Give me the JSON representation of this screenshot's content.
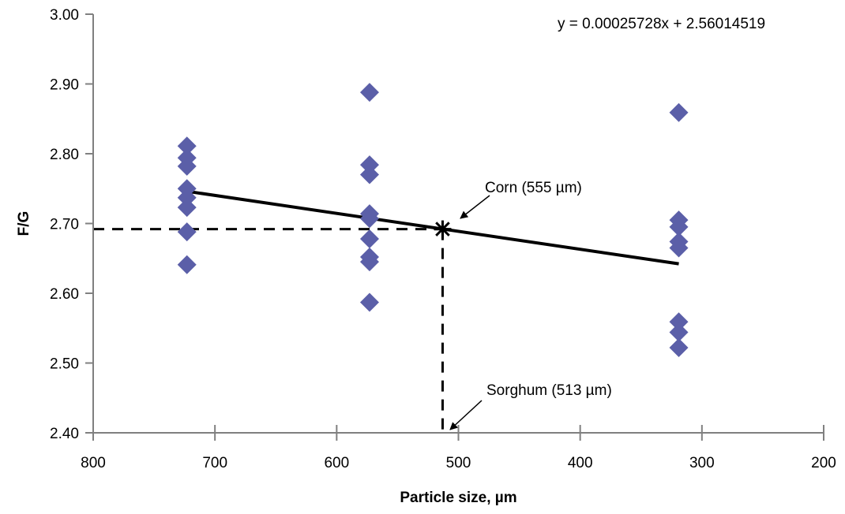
{
  "chart_data": {
    "type": "scatter",
    "xlabel": "Particle size, µm",
    "ylabel": "F/G",
    "xlim": [
      800,
      200
    ],
    "ylim": [
      2.4,
      3.0
    ],
    "x_reversed": true,
    "x_ticks": [
      "800",
      "700",
      "600",
      "500",
      "400",
      "300",
      "200"
    ],
    "y_ticks": [
      "2.40",
      "2.50",
      "2.60",
      "2.70",
      "2.80",
      "2.90",
      "3.00"
    ],
    "marker_color": "#5B5FA8",
    "series": [
      {
        "marker": "diamond",
        "points": [
          [
            723,
            2.811
          ],
          [
            723,
            2.794
          ],
          [
            723,
            2.782
          ],
          [
            723,
            2.75
          ],
          [
            723,
            2.737
          ],
          [
            723,
            2.723
          ],
          [
            723,
            2.688
          ],
          [
            723,
            2.641
          ],
          [
            573,
            2.888
          ],
          [
            573,
            2.784
          ],
          [
            573,
            2.77
          ],
          [
            573,
            2.714
          ],
          [
            573,
            2.707
          ],
          [
            573,
            2.678
          ],
          [
            573,
            2.652
          ],
          [
            573,
            2.645
          ],
          [
            573,
            2.587
          ],
          [
            319,
            2.859
          ],
          [
            319,
            2.705
          ],
          [
            319,
            2.695
          ],
          [
            319,
            2.674
          ],
          [
            319,
            2.665
          ],
          [
            319,
            2.559
          ],
          [
            319,
            2.544
          ],
          [
            319,
            2.522
          ]
        ]
      }
    ],
    "trendline": {
      "equation_text": "y = 0.00025728x + 2.56014519",
      "slope": 0.00025728,
      "intercept": 2.56014519,
      "x_range": [
        719,
        319
      ],
      "color": "#000000"
    },
    "annotations": [
      {
        "text": "Corn (555 µm)",
        "x": 513,
        "y": 2.692,
        "marker": "asterisk"
      },
      {
        "text": "Sorghum (513 µm)",
        "x": 513,
        "y": 2.4
      }
    ],
    "reference_lines": {
      "x": 513,
      "y": 2.692,
      "style": "dashed"
    },
    "grid": false,
    "legend": "none"
  }
}
